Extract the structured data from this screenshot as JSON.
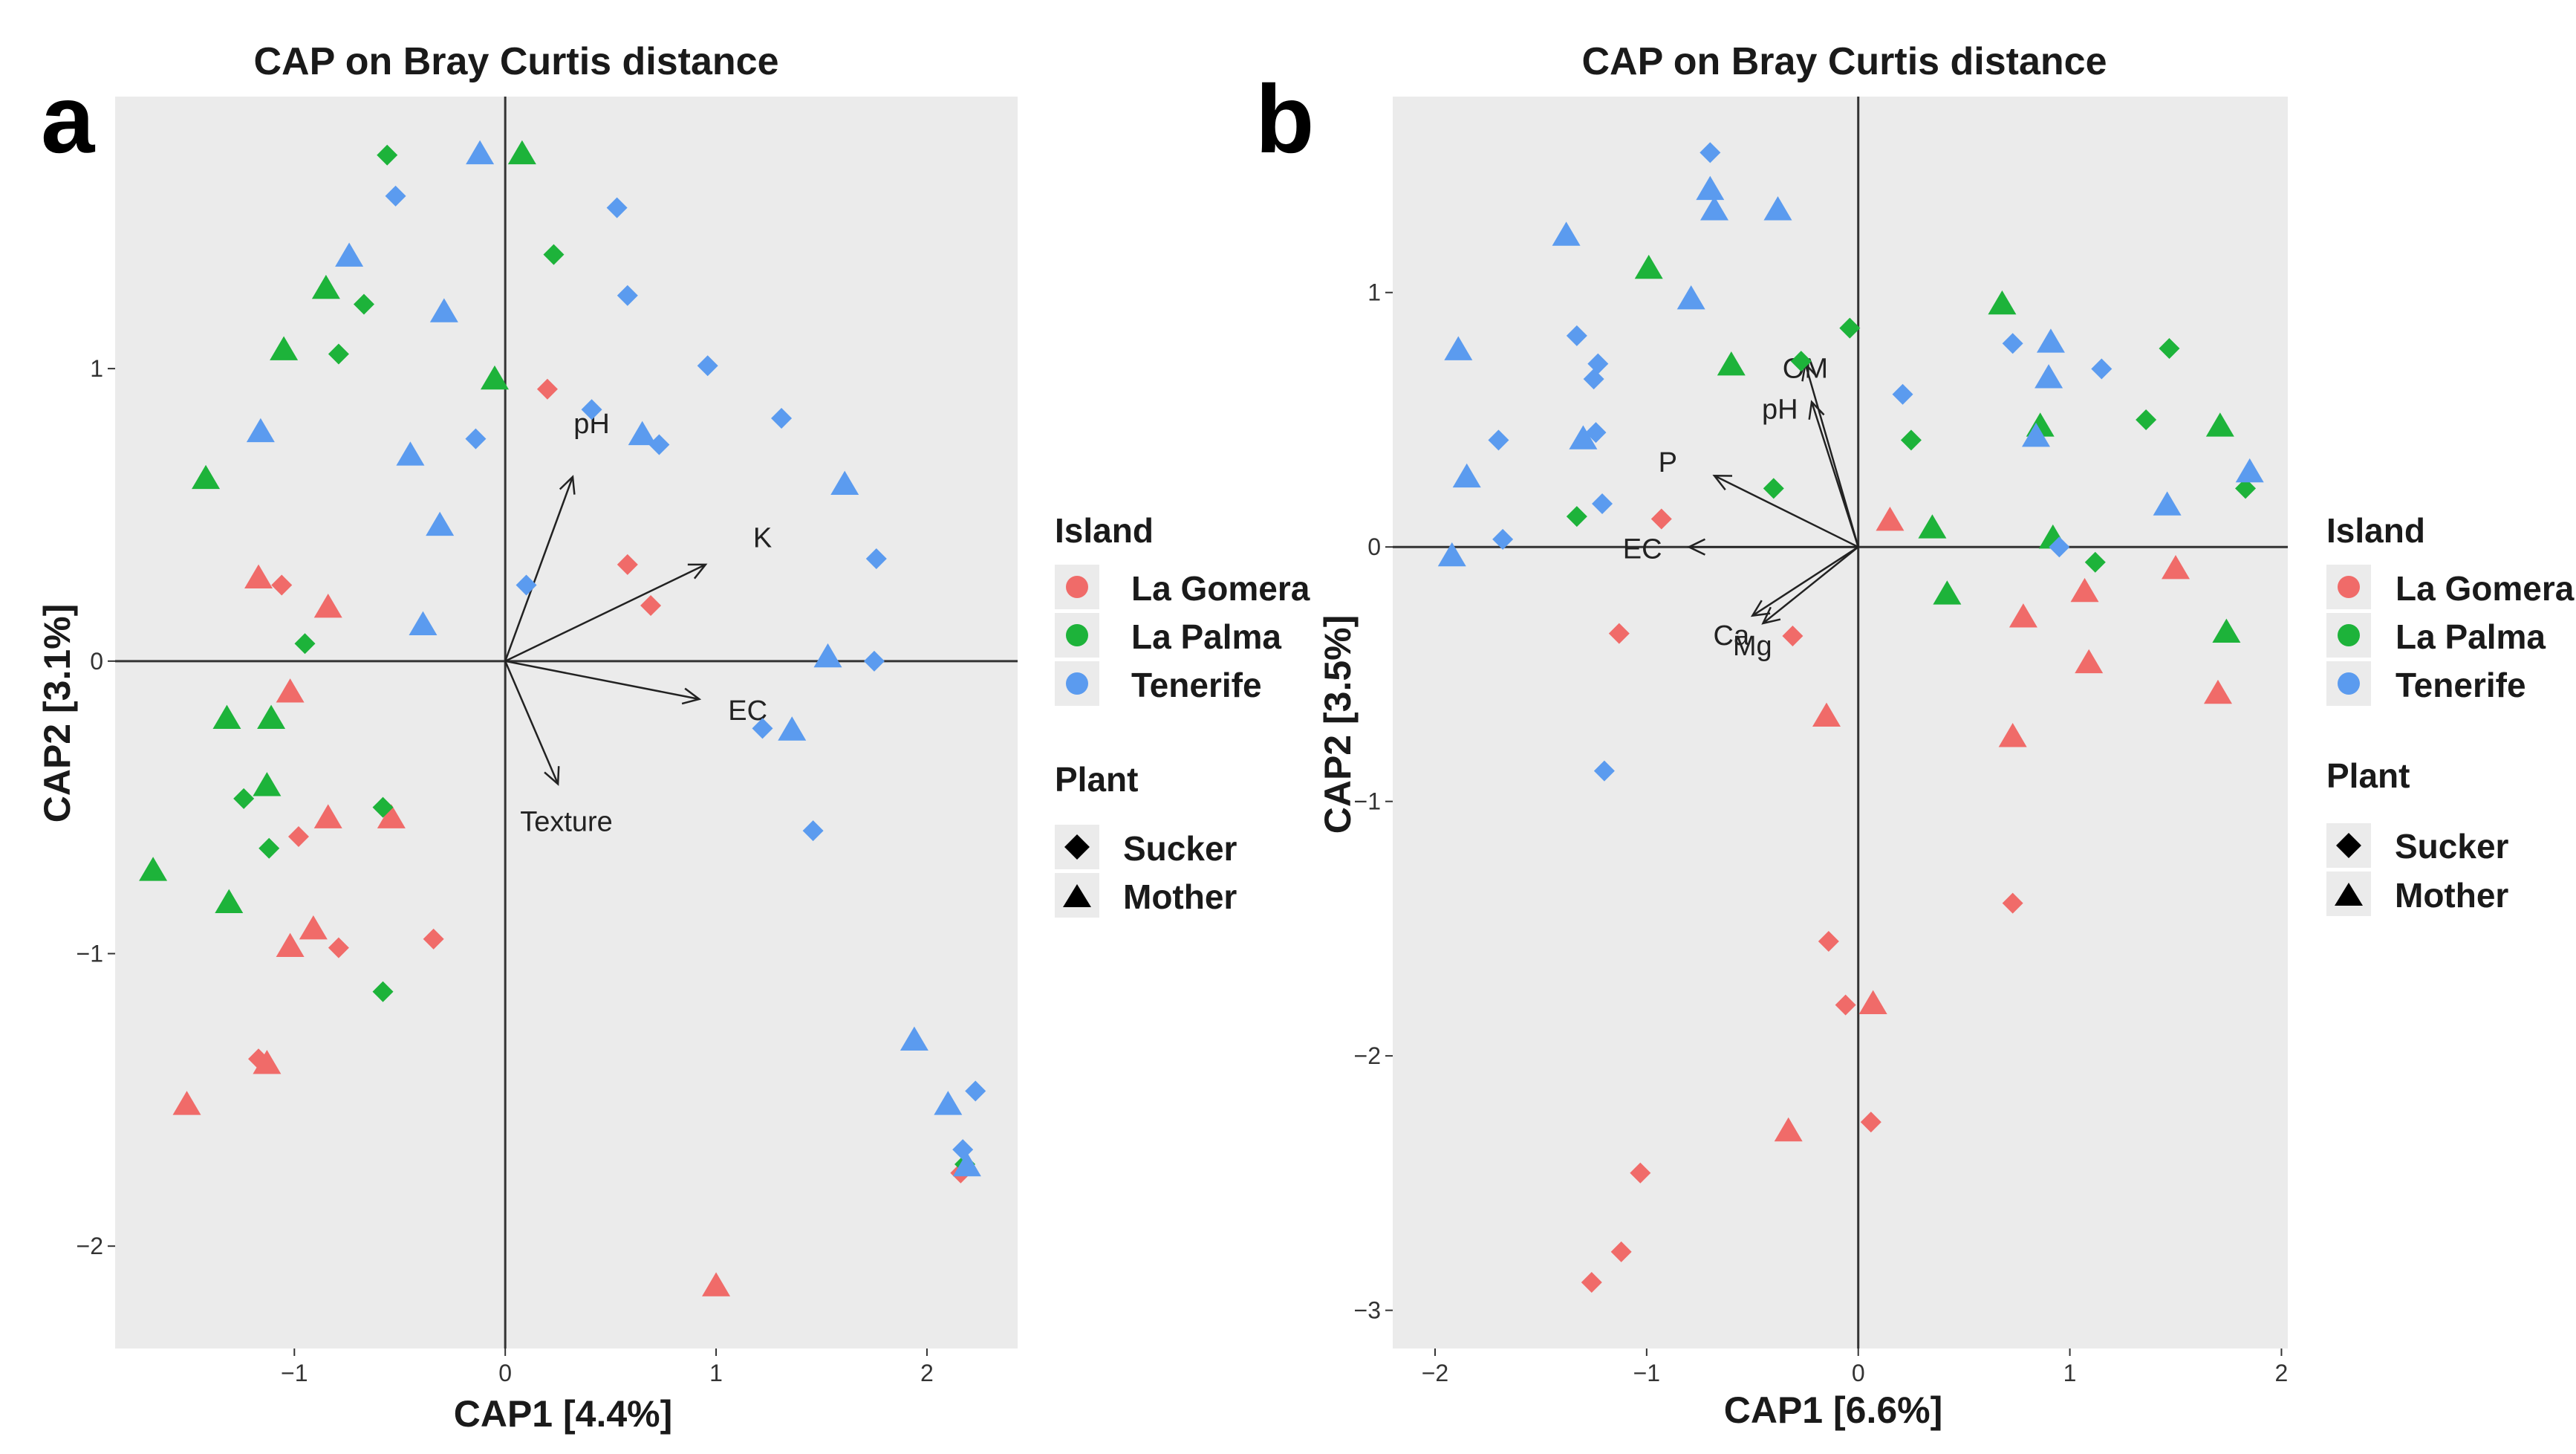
{
  "colors": {
    "La Gomera": "#F06B69",
    "La Palma": "#1DB33A",
    "Tenerife": "#5B9BEF",
    "panel_bg": "#EBEBEB",
    "axis_line": "#333333"
  },
  "chart_data": [
    {
      "panel_letter": "a",
      "type": "scatter",
      "title": "CAP on Bray Curtis distance",
      "xlabel": "CAP1 [4.4%]",
      "ylabel": "CAP2 [3.1%]",
      "xlim": [
        -1.85,
        2.43
      ],
      "ylim": [
        -2.35,
        1.93
      ],
      "xticks": [
        -1,
        0,
        1,
        2
      ],
      "yticks": [
        -2,
        -1,
        0,
        1
      ],
      "vectors": [
        {
          "label": "pH",
          "x": 0.32,
          "y": 0.63,
          "lx": 0.41,
          "ly": 0.81
        },
        {
          "label": "K",
          "x": 0.95,
          "y": 0.33,
          "lx": 1.22,
          "ly": 0.42
        },
        {
          "label": "EC",
          "x": 0.92,
          "y": -0.13,
          "lx": 1.15,
          "ly": -0.17
        },
        {
          "label": "Texture",
          "x": 0.25,
          "y": -0.42,
          "lx": 0.29,
          "ly": -0.55
        }
      ],
      "points": [
        {
          "x": 0.2,
          "y": 0.93,
          "island": "La Gomera",
          "plant": "Sucker"
        },
        {
          "x": 0.58,
          "y": 0.33,
          "island": "La Gomera",
          "plant": "Sucker"
        },
        {
          "x": 0.69,
          "y": 0.19,
          "island": "La Gomera",
          "plant": "Sucker"
        },
        {
          "x": -1.17,
          "y": 0.28,
          "island": "La Gomera",
          "plant": "Mother"
        },
        {
          "x": -1.06,
          "y": 0.26,
          "island": "La Gomera",
          "plant": "Sucker"
        },
        {
          "x": -0.84,
          "y": 0.18,
          "island": "La Gomera",
          "plant": "Mother"
        },
        {
          "x": -1.02,
          "y": -0.11,
          "island": "La Gomera",
          "plant": "Mother"
        },
        {
          "x": -0.98,
          "y": -0.6,
          "island": "La Gomera",
          "plant": "Sucker"
        },
        {
          "x": -0.84,
          "y": -0.54,
          "island": "La Gomera",
          "plant": "Mother"
        },
        {
          "x": -0.54,
          "y": -0.54,
          "island": "La Gomera",
          "plant": "Mother"
        },
        {
          "x": -0.91,
          "y": -0.92,
          "island": "La Gomera",
          "plant": "Mother"
        },
        {
          "x": -1.02,
          "y": -0.98,
          "island": "La Gomera",
          "plant": "Mother"
        },
        {
          "x": -0.79,
          "y": -0.98,
          "island": "La Gomera",
          "plant": "Sucker"
        },
        {
          "x": -0.34,
          "y": -0.95,
          "island": "La Gomera",
          "plant": "Sucker"
        },
        {
          "x": -1.17,
          "y": -1.36,
          "island": "La Gomera",
          "plant": "Sucker"
        },
        {
          "x": -1.13,
          "y": -1.38,
          "island": "La Gomera",
          "plant": "Mother"
        },
        {
          "x": -1.51,
          "y": -1.52,
          "island": "La Gomera",
          "plant": "Mother"
        },
        {
          "x": 2.16,
          "y": -1.75,
          "island": "La Gomera",
          "plant": "Sucker"
        },
        {
          "x": 1.0,
          "y": -2.14,
          "island": "La Gomera",
          "plant": "Mother"
        },
        {
          "x": -0.56,
          "y": 1.73,
          "island": "La Palma",
          "plant": "Sucker"
        },
        {
          "x": 0.08,
          "y": 1.73,
          "island": "La Palma",
          "plant": "Mother"
        },
        {
          "x": 0.23,
          "y": 1.39,
          "island": "La Palma",
          "plant": "Sucker"
        },
        {
          "x": -0.85,
          "y": 1.27,
          "island": "La Palma",
          "plant": "Mother"
        },
        {
          "x": -0.67,
          "y": 1.22,
          "island": "La Palma",
          "plant": "Sucker"
        },
        {
          "x": -1.05,
          "y": 1.06,
          "island": "La Palma",
          "plant": "Mother"
        },
        {
          "x": -0.79,
          "y": 1.05,
          "island": "La Palma",
          "plant": "Sucker"
        },
        {
          "x": -0.05,
          "y": 0.96,
          "island": "La Palma",
          "plant": "Mother"
        },
        {
          "x": -1.42,
          "y": 0.62,
          "island": "La Palma",
          "plant": "Mother"
        },
        {
          "x": -0.95,
          "y": 0.06,
          "island": "La Palma",
          "plant": "Sucker"
        },
        {
          "x": -1.32,
          "y": -0.2,
          "island": "La Palma",
          "plant": "Mother"
        },
        {
          "x": -1.11,
          "y": -0.2,
          "island": "La Palma",
          "plant": "Mother"
        },
        {
          "x": -1.24,
          "y": -0.47,
          "island": "La Palma",
          "plant": "Sucker"
        },
        {
          "x": -1.13,
          "y": -0.43,
          "island": "La Palma",
          "plant": "Mother"
        },
        {
          "x": -1.12,
          "y": -0.64,
          "island": "La Palma",
          "plant": "Sucker"
        },
        {
          "x": -0.58,
          "y": -0.5,
          "island": "La Palma",
          "plant": "Sucker"
        },
        {
          "x": -1.67,
          "y": -0.72,
          "island": "La Palma",
          "plant": "Mother"
        },
        {
          "x": -1.31,
          "y": -0.83,
          "island": "La Palma",
          "plant": "Mother"
        },
        {
          "x": -0.58,
          "y": -1.13,
          "island": "La Palma",
          "plant": "Sucker"
        },
        {
          "x": 2.18,
          "y": -1.72,
          "island": "La Palma",
          "plant": "Sucker"
        },
        {
          "x": -0.12,
          "y": 1.73,
          "island": "Tenerife",
          "plant": "Mother"
        },
        {
          "x": -0.52,
          "y": 1.59,
          "island": "Tenerife",
          "plant": "Sucker"
        },
        {
          "x": 0.53,
          "y": 1.55,
          "island": "Tenerife",
          "plant": "Sucker"
        },
        {
          "x": -0.74,
          "y": 1.38,
          "island": "Tenerife",
          "plant": "Mother"
        },
        {
          "x": 0.58,
          "y": 1.25,
          "island": "Tenerife",
          "plant": "Sucker"
        },
        {
          "x": -0.29,
          "y": 1.19,
          "island": "Tenerife",
          "plant": "Mother"
        },
        {
          "x": 0.96,
          "y": 1.01,
          "island": "Tenerife",
          "plant": "Sucker"
        },
        {
          "x": 0.41,
          "y": 0.86,
          "island": "Tenerife",
          "plant": "Sucker"
        },
        {
          "x": 1.31,
          "y": 0.83,
          "island": "Tenerife",
          "plant": "Sucker"
        },
        {
          "x": -1.16,
          "y": 0.78,
          "island": "Tenerife",
          "plant": "Mother"
        },
        {
          "x": -0.14,
          "y": 0.76,
          "island": "Tenerife",
          "plant": "Sucker"
        },
        {
          "x": 0.65,
          "y": 0.77,
          "island": "Tenerife",
          "plant": "Mother"
        },
        {
          "x": 0.73,
          "y": 0.74,
          "island": "Tenerife",
          "plant": "Sucker"
        },
        {
          "x": -0.45,
          "y": 0.7,
          "island": "Tenerife",
          "plant": "Mother"
        },
        {
          "x": 1.61,
          "y": 0.6,
          "island": "Tenerife",
          "plant": "Mother"
        },
        {
          "x": -0.31,
          "y": 0.46,
          "island": "Tenerife",
          "plant": "Mother"
        },
        {
          "x": 1.76,
          "y": 0.35,
          "island": "Tenerife",
          "plant": "Sucker"
        },
        {
          "x": 0.1,
          "y": 0.26,
          "island": "Tenerife",
          "plant": "Sucker"
        },
        {
          "x": -0.39,
          "y": 0.12,
          "island": "Tenerife",
          "plant": "Mother"
        },
        {
          "x": 1.53,
          "y": 0.01,
          "island": "Tenerife",
          "plant": "Mother"
        },
        {
          "x": 1.75,
          "y": 0.0,
          "island": "Tenerife",
          "plant": "Sucker"
        },
        {
          "x": 1.22,
          "y": -0.23,
          "island": "Tenerife",
          "plant": "Sucker"
        },
        {
          "x": 1.36,
          "y": -0.24,
          "island": "Tenerife",
          "plant": "Mother"
        },
        {
          "x": 1.46,
          "y": -0.58,
          "island": "Tenerife",
          "plant": "Sucker"
        },
        {
          "x": 1.94,
          "y": -1.3,
          "island": "Tenerife",
          "plant": "Mother"
        },
        {
          "x": 2.1,
          "y": -1.52,
          "island": "Tenerife",
          "plant": "Mother"
        },
        {
          "x": 2.23,
          "y": -1.47,
          "island": "Tenerife",
          "plant": "Sucker"
        },
        {
          "x": 2.17,
          "y": -1.67,
          "island": "Tenerife",
          "plant": "Sucker"
        },
        {
          "x": 2.19,
          "y": -1.73,
          "island": "Tenerife",
          "plant": "Mother"
        }
      ]
    },
    {
      "panel_letter": "b",
      "type": "scatter",
      "title": "CAP on Bray Curtis distance",
      "xlabel": "CAP1 [6.6%]",
      "ylabel": "CAP2 [3.5%]",
      "xlim": [
        -2.2,
        2.03
      ],
      "ylim": [
        -3.15,
        1.77
      ],
      "xticks": [
        -2,
        -1,
        0,
        1,
        2
      ],
      "yticks": [
        -3,
        -2,
        -1,
        0,
        1
      ],
      "vectors": [
        {
          "label": "OM",
          "x": -0.25,
          "y": 0.72,
          "lx": -0.25,
          "ly": 0.7
        },
        {
          "label": "pH",
          "x": -0.22,
          "y": 0.57,
          "lx": -0.37,
          "ly": 0.54
        },
        {
          "label": "P",
          "x": -0.68,
          "y": 0.28,
          "lx": -0.9,
          "ly": 0.33
        },
        {
          "label": "EC",
          "x": -0.8,
          "y": 0.0,
          "lx": -1.02,
          "ly": -0.01
        },
        {
          "label": "Ca",
          "x": -0.5,
          "y": -0.27,
          "lx": -0.6,
          "ly": -0.35
        },
        {
          "label": "Mg",
          "x": -0.45,
          "y": -0.3,
          "lx": -0.5,
          "ly": -0.39
        }
      ],
      "points": [
        {
          "x": -0.93,
          "y": 0.11,
          "island": "La Gomera",
          "plant": "Sucker"
        },
        {
          "x": 0.15,
          "y": 0.1,
          "island": "La Gomera",
          "plant": "Mother"
        },
        {
          "x": -1.13,
          "y": -0.34,
          "island": "La Gomera",
          "plant": "Sucker"
        },
        {
          "x": -0.31,
          "y": -0.35,
          "island": "La Gomera",
          "plant": "Sucker"
        },
        {
          "x": -0.15,
          "y": -0.67,
          "island": "La Gomera",
          "plant": "Mother"
        },
        {
          "x": 1.07,
          "y": -0.18,
          "island": "La Gomera",
          "plant": "Mother"
        },
        {
          "x": 1.5,
          "y": -0.09,
          "island": "La Gomera",
          "plant": "Mother"
        },
        {
          "x": 0.78,
          "y": -0.28,
          "island": "La Gomera",
          "plant": "Mother"
        },
        {
          "x": 1.09,
          "y": -0.46,
          "island": "La Gomera",
          "plant": "Mother"
        },
        {
          "x": 1.7,
          "y": -0.58,
          "island": "La Gomera",
          "plant": "Mother"
        },
        {
          "x": 0.73,
          "y": -0.75,
          "island": "La Gomera",
          "plant": "Mother"
        },
        {
          "x": 0.73,
          "y": -1.4,
          "island": "La Gomera",
          "plant": "Sucker"
        },
        {
          "x": -0.14,
          "y": -1.55,
          "island": "La Gomera",
          "plant": "Sucker"
        },
        {
          "x": -0.06,
          "y": -1.8,
          "island": "La Gomera",
          "plant": "Sucker"
        },
        {
          "x": 0.07,
          "y": -1.8,
          "island": "La Gomera",
          "plant": "Mother"
        },
        {
          "x": -0.33,
          "y": -2.3,
          "island": "La Gomera",
          "plant": "Mother"
        },
        {
          "x": 0.06,
          "y": -2.26,
          "island": "La Gomera",
          "plant": "Sucker"
        },
        {
          "x": -1.03,
          "y": -2.46,
          "island": "La Gomera",
          "plant": "Sucker"
        },
        {
          "x": -1.12,
          "y": -2.77,
          "island": "La Gomera",
          "plant": "Sucker"
        },
        {
          "x": -1.26,
          "y": -2.89,
          "island": "La Gomera",
          "plant": "Sucker"
        },
        {
          "x": -0.99,
          "y": 1.09,
          "island": "La Palma",
          "plant": "Mother"
        },
        {
          "x": -0.6,
          "y": 0.71,
          "island": "La Palma",
          "plant": "Mother"
        },
        {
          "x": -0.27,
          "y": 0.73,
          "island": "La Palma",
          "plant": "Sucker"
        },
        {
          "x": -0.04,
          "y": 0.86,
          "island": "La Palma",
          "plant": "Sucker"
        },
        {
          "x": 0.68,
          "y": 0.95,
          "island": "La Palma",
          "plant": "Mother"
        },
        {
          "x": 1.47,
          "y": 0.78,
          "island": "La Palma",
          "plant": "Sucker"
        },
        {
          "x": 0.25,
          "y": 0.42,
          "island": "La Palma",
          "plant": "Sucker"
        },
        {
          "x": 0.86,
          "y": 0.47,
          "island": "La Palma",
          "plant": "Mother"
        },
        {
          "x": 1.36,
          "y": 0.5,
          "island": "La Palma",
          "plant": "Sucker"
        },
        {
          "x": 1.71,
          "y": 0.47,
          "island": "La Palma",
          "plant": "Mother"
        },
        {
          "x": 1.83,
          "y": 0.23,
          "island": "La Palma",
          "plant": "Sucker"
        },
        {
          "x": -0.4,
          "y": 0.23,
          "island": "La Palma",
          "plant": "Sucker"
        },
        {
          "x": -1.33,
          "y": 0.12,
          "island": "La Palma",
          "plant": "Sucker"
        },
        {
          "x": 0.35,
          "y": 0.07,
          "island": "La Palma",
          "plant": "Mother"
        },
        {
          "x": 0.92,
          "y": 0.03,
          "island": "La Palma",
          "plant": "Mother"
        },
        {
          "x": 1.12,
          "y": -0.06,
          "island": "La Palma",
          "plant": "Sucker"
        },
        {
          "x": 0.42,
          "y": -0.19,
          "island": "La Palma",
          "plant": "Mother"
        },
        {
          "x": 1.74,
          "y": -0.34,
          "island": "La Palma",
          "plant": "Mother"
        },
        {
          "x": -0.7,
          "y": 1.55,
          "island": "Tenerife",
          "plant": "Sucker"
        },
        {
          "x": -0.7,
          "y": 1.4,
          "island": "Tenerife",
          "plant": "Mother"
        },
        {
          "x": -0.68,
          "y": 1.32,
          "island": "Tenerife",
          "plant": "Mother"
        },
        {
          "x": -0.38,
          "y": 1.32,
          "island": "Tenerife",
          "plant": "Mother"
        },
        {
          "x": -1.38,
          "y": 1.22,
          "island": "Tenerife",
          "plant": "Mother"
        },
        {
          "x": -0.79,
          "y": 0.97,
          "island": "Tenerife",
          "plant": "Mother"
        },
        {
          "x": -1.33,
          "y": 0.83,
          "island": "Tenerife",
          "plant": "Sucker"
        },
        {
          "x": -1.89,
          "y": 0.77,
          "island": "Tenerife",
          "plant": "Mother"
        },
        {
          "x": -1.23,
          "y": 0.72,
          "island": "Tenerife",
          "plant": "Sucker"
        },
        {
          "x": -1.25,
          "y": 0.66,
          "island": "Tenerife",
          "plant": "Sucker"
        },
        {
          "x": -1.24,
          "y": 0.45,
          "island": "Tenerife",
          "plant": "Sucker"
        },
        {
          "x": -1.3,
          "y": 0.42,
          "island": "Tenerife",
          "plant": "Mother"
        },
        {
          "x": -1.7,
          "y": 0.42,
          "island": "Tenerife",
          "plant": "Sucker"
        },
        {
          "x": -1.85,
          "y": 0.27,
          "island": "Tenerife",
          "plant": "Mother"
        },
        {
          "x": -1.21,
          "y": 0.17,
          "island": "Tenerife",
          "plant": "Sucker"
        },
        {
          "x": -1.68,
          "y": 0.03,
          "island": "Tenerife",
          "plant": "Sucker"
        },
        {
          "x": -1.92,
          "y": -0.04,
          "island": "Tenerife",
          "plant": "Mother"
        },
        {
          "x": -1.2,
          "y": -0.88,
          "island": "Tenerife",
          "plant": "Sucker"
        },
        {
          "x": 0.21,
          "y": 0.6,
          "island": "Tenerife",
          "plant": "Sucker"
        },
        {
          "x": 0.73,
          "y": 0.8,
          "island": "Tenerife",
          "plant": "Sucker"
        },
        {
          "x": 0.91,
          "y": 0.8,
          "island": "Tenerife",
          "plant": "Mother"
        },
        {
          "x": 0.9,
          "y": 0.66,
          "island": "Tenerife",
          "plant": "Mother"
        },
        {
          "x": 1.15,
          "y": 0.7,
          "island": "Tenerife",
          "plant": "Sucker"
        },
        {
          "x": 0.84,
          "y": 0.43,
          "island": "Tenerife",
          "plant": "Mother"
        },
        {
          "x": 1.46,
          "y": 0.16,
          "island": "Tenerife",
          "plant": "Mother"
        },
        {
          "x": 1.85,
          "y": 0.29,
          "island": "Tenerife",
          "plant": "Mother"
        },
        {
          "x": 0.95,
          "y": 0.0,
          "island": "Tenerife",
          "plant": "Sucker"
        }
      ]
    }
  ],
  "legend": {
    "island_title": "Island",
    "islands": [
      "La Gomera",
      "La Palma",
      "Tenerife"
    ],
    "plant_title": "Plant",
    "plants": [
      "Sucker",
      "Mother"
    ]
  }
}
